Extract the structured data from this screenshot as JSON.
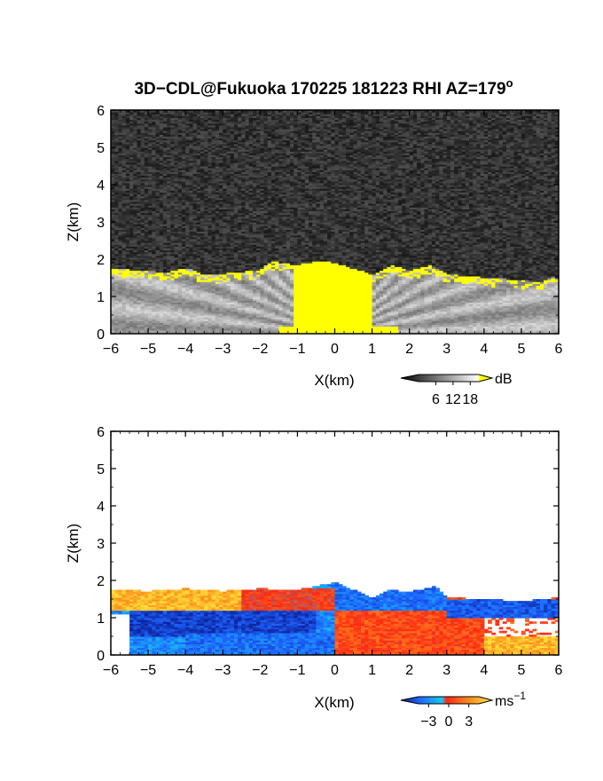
{
  "title": "3D−CDL@Fukuoka 170225 181223 RHI AZ=179",
  "title_sup": "o",
  "chart_data": [
    {
      "type": "heatmap",
      "panel": "reflectivity",
      "xlabel": "X(km)",
      "ylabel": "Z(km)",
      "xlim": [
        -6,
        6
      ],
      "ylim": [
        0,
        6
      ],
      "x_ticks": [
        "−6",
        "−5",
        "−4",
        "−3",
        "−2",
        "−1",
        "0",
        "1",
        "2",
        "3",
        "4",
        "5",
        "6"
      ],
      "y_ticks": [
        "0",
        "1",
        "2",
        "3",
        "4",
        "5",
        "6"
      ],
      "colorbar": {
        "unit": "dB",
        "ticks": [
          "6",
          "12",
          "18"
        ],
        "tick_values": [
          6,
          12,
          18
        ],
        "range": [
          0,
          21
        ],
        "colors": [
          "#000000",
          "#ffffff",
          "#ffff00"
        ]
      },
      "background_color": "#2a2a2a",
      "echo_colors": {
        "low": "#3a3a3a",
        "mid": "#c8c8c8",
        "high": "#ffff00"
      },
      "echo_top_km": [
        [
          -6,
          1.75
        ],
        [
          -5,
          1.7
        ],
        [
          -4.5,
          1.65
        ],
        [
          -4,
          1.78
        ],
        [
          -3.5,
          1.6
        ],
        [
          -3,
          1.62
        ],
        [
          -2,
          1.72
        ],
        [
          -1.7,
          1.95
        ],
        [
          -1,
          1.85
        ],
        [
          -0.5,
          1.95
        ],
        [
          0,
          1.92
        ],
        [
          0.5,
          1.75
        ],
        [
          1,
          1.6
        ],
        [
          1.5,
          1.85
        ],
        [
          2,
          1.7
        ],
        [
          2.6,
          1.85
        ],
        [
          3,
          1.6
        ],
        [
          4,
          1.52
        ],
        [
          5,
          1.45
        ],
        [
          5.5,
          1.4
        ],
        [
          5.8,
          1.55
        ],
        [
          6,
          1.5
        ]
      ],
      "high_echo_core_km": {
        "x_range": [
          -1.2,
          0.9
        ],
        "z_top": 1.9
      }
    },
    {
      "type": "heatmap",
      "panel": "doppler-velocity",
      "xlabel": "X(km)",
      "ylabel": "Z(km)",
      "xlim": [
        -6,
        6
      ],
      "ylim": [
        0,
        6
      ],
      "x_ticks": [
        "−6",
        "−5",
        "−4",
        "−3",
        "−2",
        "−1",
        "0",
        "1",
        "2",
        "3",
        "4",
        "5",
        "6"
      ],
      "y_ticks": [
        "0",
        "1",
        "2",
        "3",
        "4",
        "5",
        "6"
      ],
      "colorbar": {
        "unit": "ms",
        "unit_sup": "−1",
        "ticks": [
          "−3",
          "0",
          "3"
        ],
        "tick_values": [
          -3,
          0,
          3
        ],
        "range": [
          -4.5,
          4.5
        ],
        "colors": [
          "#0a1a8c",
          "#1e64ff",
          "#19c8f0",
          "#ff2814",
          "#ff8c1e",
          "#ffee3c"
        ]
      },
      "background_color": "#ffffff",
      "echo_top_km": [
        [
          -6,
          1.75
        ],
        [
          -5,
          1.72
        ],
        [
          -4,
          1.78
        ],
        [
          -3,
          1.72
        ],
        [
          -2,
          1.78
        ],
        [
          -1,
          1.75
        ],
        [
          0,
          1.95
        ],
        [
          0.5,
          1.75
        ],
        [
          1,
          1.55
        ],
        [
          1.5,
          1.75
        ],
        [
          2,
          1.7
        ],
        [
          2.7,
          1.85
        ],
        [
          3,
          1.55
        ],
        [
          4,
          1.5
        ],
        [
          5,
          1.45
        ],
        [
          6,
          1.55
        ]
      ],
      "regions_ms": [
        {
          "x_range": [
            -6,
            -1.5
          ],
          "z_range": [
            1.2,
            1.8
          ],
          "velocity": 3.5
        },
        {
          "x_range": [
            -5.5,
            -0.5
          ],
          "z_range": [
            0.5,
            1.2
          ],
          "velocity": -3.5
        },
        {
          "x_range": [
            -4,
            0
          ],
          "z_range": [
            0,
            0.6
          ],
          "velocity": -2.5
        },
        {
          "x_range": [
            -2.5,
            0
          ],
          "z_range": [
            1.2,
            1.8
          ],
          "velocity": 1
        },
        {
          "x_range": [
            0,
            3
          ],
          "z_range": [
            1.2,
            1.95
          ],
          "velocity": -2.5
        },
        {
          "x_range": [
            0,
            4
          ],
          "z_range": [
            0,
            1.2
          ],
          "velocity": 1.5
        },
        {
          "x_range": [
            3,
            6
          ],
          "z_range": [
            1.0,
            1.5
          ],
          "velocity": -3
        },
        {
          "x_range": [
            4,
            6
          ],
          "z_range": [
            0,
            0.5
          ],
          "velocity": 3.5
        }
      ]
    }
  ]
}
